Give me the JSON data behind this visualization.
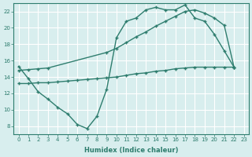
{
  "line1_x": [
    0,
    1,
    2,
    3,
    4,
    5,
    6,
    7,
    8,
    9,
    10,
    11,
    12,
    13,
    14,
    15,
    16,
    17,
    18,
    19,
    20,
    21,
    22
  ],
  "line1_y": [
    15.3,
    13.8,
    12.2,
    11.3,
    10.3,
    9.5,
    8.2,
    7.7,
    9.2,
    12.5,
    18.8,
    20.8,
    21.2,
    22.2,
    22.5,
    22.2,
    22.2,
    22.8,
    21.2,
    20.8,
    19.2,
    17.2,
    15.2
  ],
  "line2_x": [
    0,
    1,
    2,
    3,
    4,
    5,
    6,
    7,
    8,
    9,
    10,
    11,
    12,
    13,
    14,
    15,
    16,
    17,
    18,
    19,
    20,
    21,
    22
  ],
  "line2_y": [
    13.2,
    13.2,
    13.3,
    13.3,
    13.4,
    13.5,
    13.6,
    13.7,
    13.8,
    13.9,
    14.0,
    14.2,
    14.4,
    14.5,
    14.7,
    14.8,
    15.0,
    15.1,
    15.2,
    15.2,
    15.2,
    15.2,
    15.2
  ],
  "line3_x": [
    0,
    1,
    2,
    3,
    9,
    10,
    11,
    12,
    13,
    14,
    15,
    16,
    17,
    18,
    19,
    20,
    21,
    22
  ],
  "line3_y": [
    14.8,
    14.9,
    15.0,
    15.1,
    17.0,
    17.5,
    18.2,
    18.9,
    19.5,
    20.2,
    20.8,
    21.4,
    22.0,
    22.2,
    21.8,
    21.2,
    20.3,
    15.2
  ],
  "color": "#2e7d6e",
  "bg_color": "#d8eeee",
  "grid_color": "#ffffff",
  "xlabel": "Humidex (Indice chaleur)",
  "xlim": [
    -0.5,
    23.5
  ],
  "ylim": [
    7,
    23
  ],
  "yticks": [
    8,
    10,
    12,
    14,
    16,
    18,
    20,
    22
  ],
  "xticks": [
    0,
    1,
    2,
    3,
    4,
    5,
    6,
    7,
    8,
    9,
    10,
    11,
    12,
    13,
    14,
    15,
    16,
    17,
    18,
    19,
    20,
    21,
    22,
    23
  ],
  "markersize": 2.5,
  "linewidth": 1.0
}
